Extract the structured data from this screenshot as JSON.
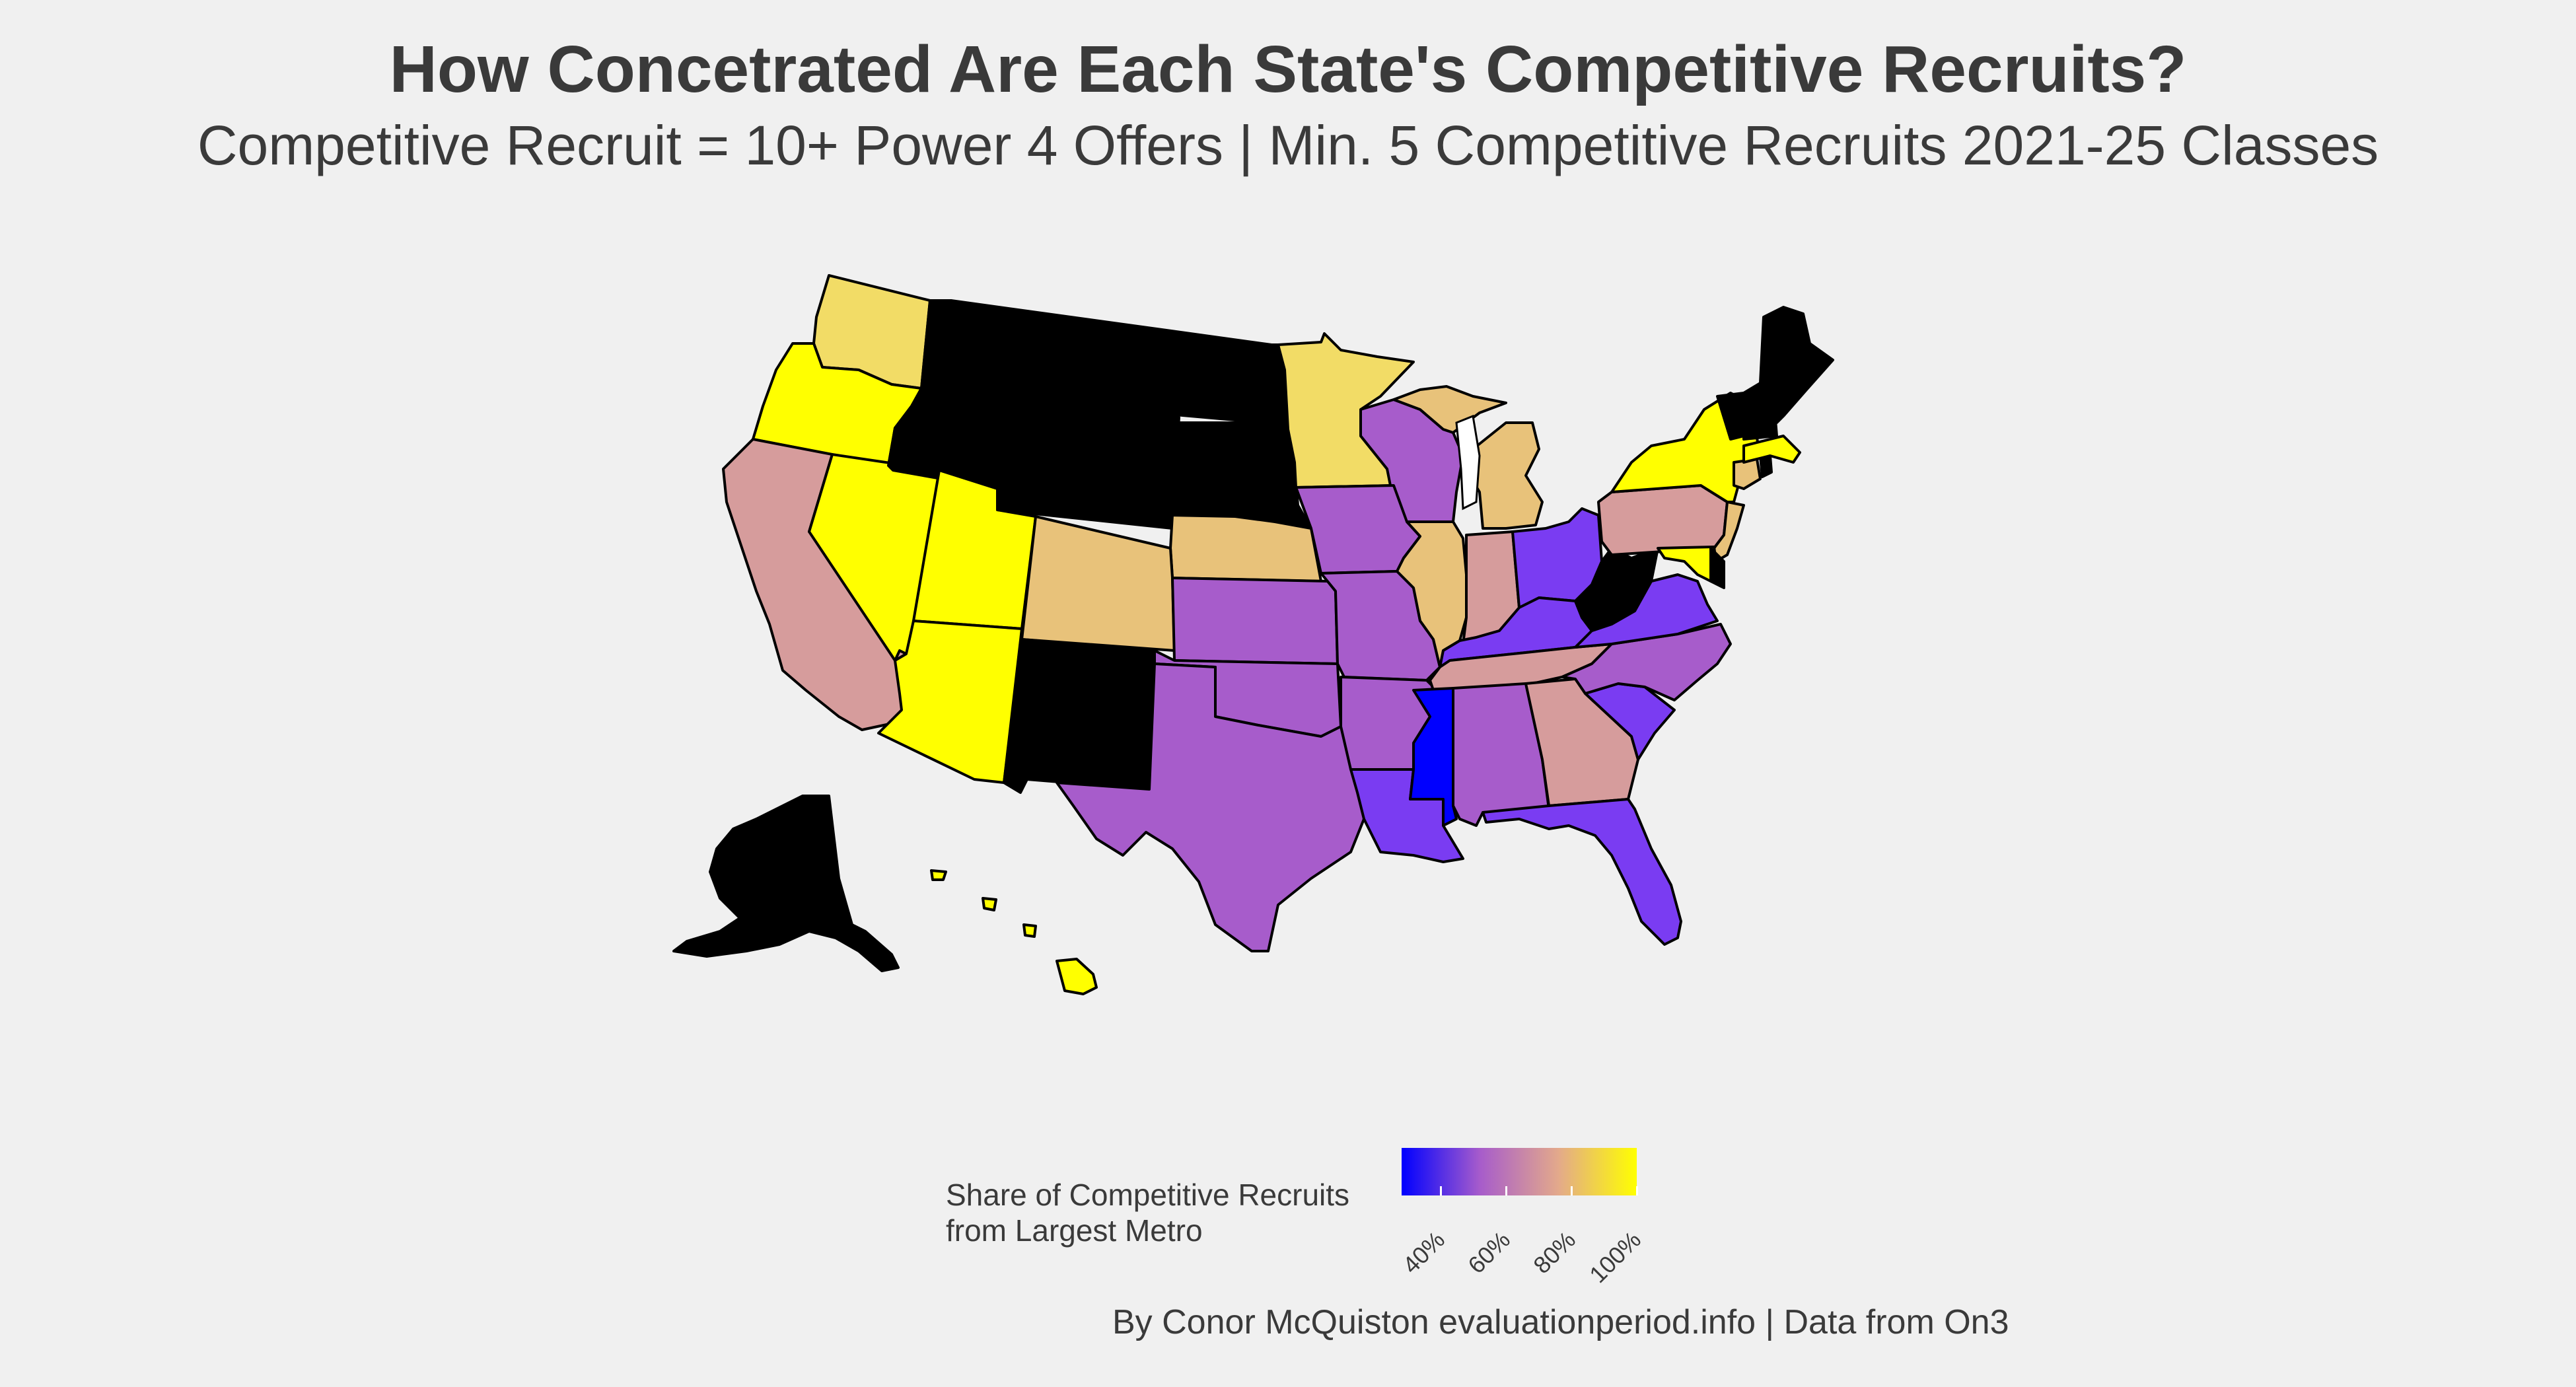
{
  "title": "How Concetrated Are Each State's Competitive Recruits?",
  "subtitle": "Competitive Recruit = 10+ Power 4 Offers | Min. 5 Competitive Recruits 2021-25 Classes",
  "legend": {
    "title_line1": "Share of Competitive Recruits",
    "title_line2": "from Largest Metro",
    "ticks": [
      "40%",
      "60%",
      "80%",
      "100%"
    ],
    "tick_values": [
      40,
      60,
      80,
      100
    ],
    "range": [
      28,
      100
    ],
    "colors": [
      "#0000ff",
      "#a75ccb",
      "#e3a98b",
      "#ffff00"
    ]
  },
  "caption": "By Conor McQuiston evaluationperiod.info | Data from On3",
  "map_colors": {
    "no_data": "#000000",
    "yellow": "#ffff00",
    "light_gold": "#f2dc66",
    "tan": "#e8c27a",
    "pink": "#d69c9c",
    "purple": "#a75ccb",
    "violet": "#7a3cf2",
    "blue": "#0000ff"
  },
  "states": [
    {
      "id": "WA",
      "color": "light_gold"
    },
    {
      "id": "OR",
      "color": "yellow"
    },
    {
      "id": "CA",
      "color": "pink"
    },
    {
      "id": "NV",
      "color": "yellow"
    },
    {
      "id": "UT",
      "color": "yellow"
    },
    {
      "id": "AZ",
      "color": "yellow"
    },
    {
      "id": "ID",
      "color": "no_data"
    },
    {
      "id": "MT",
      "color": "no_data"
    },
    {
      "id": "WY",
      "color": "no_data"
    },
    {
      "id": "ND",
      "color": "no_data"
    },
    {
      "id": "SD",
      "color": "no_data"
    },
    {
      "id": "NM",
      "color": "no_data"
    },
    {
      "id": "CO",
      "color": "tan"
    },
    {
      "id": "NE",
      "color": "tan"
    },
    {
      "id": "KS",
      "color": "purple"
    },
    {
      "id": "OK",
      "color": "purple"
    },
    {
      "id": "TX",
      "color": "purple"
    },
    {
      "id": "MN",
      "color": "light_gold"
    },
    {
      "id": "IA",
      "color": "purple"
    },
    {
      "id": "MO",
      "color": "purple"
    },
    {
      "id": "AR",
      "color": "purple"
    },
    {
      "id": "LA",
      "color": "violet"
    },
    {
      "id": "WI",
      "color": "purple"
    },
    {
      "id": "IL",
      "color": "tan"
    },
    {
      "id": "MI",
      "color": "tan"
    },
    {
      "id": "IN",
      "color": "pink"
    },
    {
      "id": "OH",
      "color": "violet"
    },
    {
      "id": "KY",
      "color": "violet"
    },
    {
      "id": "TN",
      "color": "pink"
    },
    {
      "id": "MS",
      "color": "blue"
    },
    {
      "id": "AL",
      "color": "purple"
    },
    {
      "id": "GA",
      "color": "pink"
    },
    {
      "id": "FL",
      "color": "violet"
    },
    {
      "id": "SC",
      "color": "violet"
    },
    {
      "id": "NC",
      "color": "purple"
    },
    {
      "id": "VA",
      "color": "violet"
    },
    {
      "id": "WV",
      "color": "no_data"
    },
    {
      "id": "PA",
      "color": "pink"
    },
    {
      "id": "NY",
      "color": "yellow"
    },
    {
      "id": "NJ",
      "color": "tan"
    },
    {
      "id": "MD",
      "color": "yellow"
    },
    {
      "id": "DE",
      "color": "no_data"
    },
    {
      "id": "CT",
      "color": "tan"
    },
    {
      "id": "MA",
      "color": "yellow"
    },
    {
      "id": "RI",
      "color": "no_data"
    },
    {
      "id": "VT",
      "color": "no_data"
    },
    {
      "id": "NH",
      "color": "no_data"
    },
    {
      "id": "ME",
      "color": "no_data"
    },
    {
      "id": "AK",
      "color": "no_data"
    },
    {
      "id": "HI",
      "color": "yellow"
    }
  ]
}
